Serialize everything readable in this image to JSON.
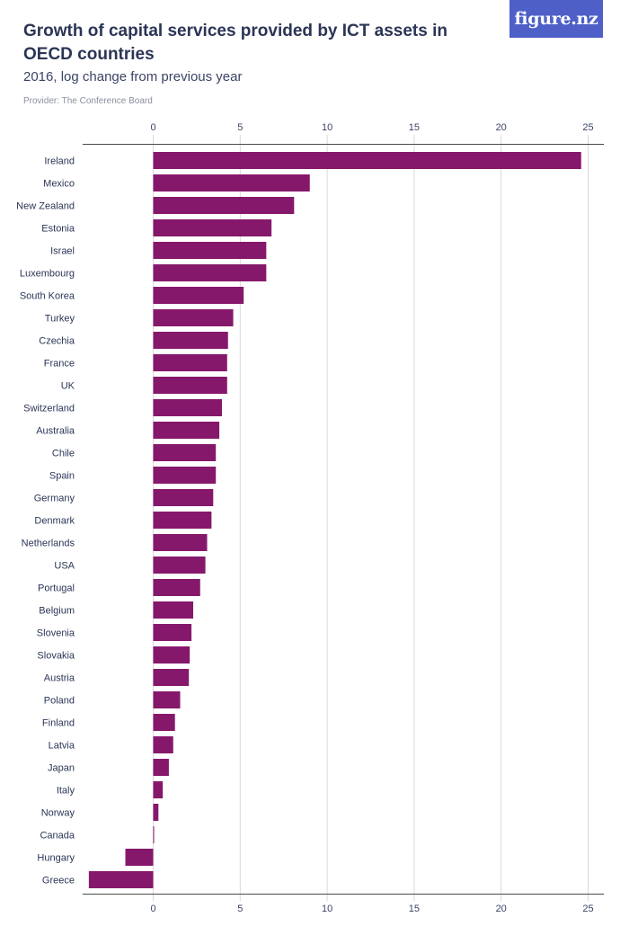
{
  "header": {
    "title": "Growth of capital services provided by ICT assets in OECD countries",
    "subtitle": "2016, log change from previous year",
    "provider": "Provider: The Conference Board",
    "logo": "figure.nz"
  },
  "colors": {
    "bar": "#86186b",
    "grid": "#d9d9d9",
    "axis": "#4a4a4a",
    "logo_bg": "#4e5fc8"
  },
  "chart_data": {
    "type": "bar",
    "orientation": "horizontal",
    "title": "Growth of capital services provided by ICT assets in OECD countries",
    "subtitle": "2016, log change from previous year",
    "xlabel": "",
    "ylabel": "",
    "xlim": [
      -4,
      26
    ],
    "xticks": [
      0,
      5,
      10,
      15,
      20,
      25
    ],
    "grid": true,
    "axis_labels_top_and_bottom": true,
    "categories": [
      "Ireland",
      "Mexico",
      "New Zealand",
      "Estonia",
      "Israel",
      "Luxembourg",
      "South Korea",
      "Turkey",
      "Czechia",
      "France",
      "UK",
      "Switzerland",
      "Australia",
      "Chile",
      "Spain",
      "Germany",
      "Denmark",
      "Netherlands",
      "USA",
      "Portugal",
      "Belgium",
      "Slovenia",
      "Slovakia",
      "Austria",
      "Poland",
      "Finland",
      "Latvia",
      "Japan",
      "Italy",
      "Norway",
      "Canada",
      "Hungary",
      "Greece"
    ],
    "values": [
      24.6,
      9.0,
      8.1,
      6.8,
      6.5,
      6.5,
      5.2,
      4.6,
      4.3,
      4.25,
      4.25,
      3.95,
      3.8,
      3.6,
      3.6,
      3.45,
      3.35,
      3.1,
      3.0,
      2.7,
      2.3,
      2.2,
      2.1,
      2.05,
      1.55,
      1.25,
      1.15,
      0.9,
      0.55,
      0.3,
      0.05,
      -1.6,
      -3.7
    ]
  }
}
